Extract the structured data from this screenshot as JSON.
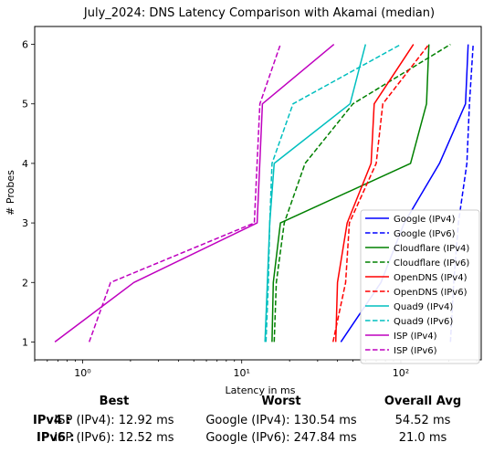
{
  "chart_data": {
    "type": "line",
    "title": "July_2024: DNS Latency Comparison with Akamai (median)",
    "xlabel": "Latency in ms",
    "ylabel": "# Probes",
    "xscale": "log",
    "xlim": [
      0.5,
      320
    ],
    "ylim": [
      0.7,
      6.3
    ],
    "xticks": [
      1,
      10,
      100
    ],
    "xtick_labels": [
      "10⁰",
      "10¹",
      "10²"
    ],
    "yticks": [
      1,
      2,
      3,
      4,
      5,
      6
    ],
    "grid": false,
    "legend_position": "lower-right",
    "series": [
      {
        "name": "Google (IPv4)",
        "color": "#0000ff",
        "dash": "solid",
        "points": [
          [
            42,
            1
          ],
          [
            75,
            2
          ],
          [
            105,
            3
          ],
          [
            175,
            4
          ],
          [
            255,
            5
          ],
          [
            265,
            6
          ]
        ]
      },
      {
        "name": "Google (IPv6)",
        "color": "#0000ff",
        "dash": "dashed",
        "points": [
          [
            205,
            1
          ],
          [
            215,
            2
          ],
          [
            230,
            3
          ],
          [
            260,
            4
          ],
          [
            270,
            5
          ],
          [
            285,
            6
          ]
        ]
      },
      {
        "name": "Cloudflare (IPv4)",
        "color": "#008000",
        "dash": "solid",
        "points": [
          [
            15.5,
            1
          ],
          [
            15.8,
            2
          ],
          [
            17.5,
            3
          ],
          [
            115,
            4
          ],
          [
            145,
            5
          ],
          [
            150,
            6
          ]
        ]
      },
      {
        "name": "Cloudflare (IPv6)",
        "color": "#008000",
        "dash": "dashed",
        "points": [
          [
            16,
            1
          ],
          [
            16.5,
            2
          ],
          [
            18.5,
            3
          ],
          [
            25,
            4
          ],
          [
            50,
            5
          ],
          [
            205,
            6
          ]
        ]
      },
      {
        "name": "OpenDNS (IPv4)",
        "color": "#ff0000",
        "dash": "solid",
        "points": [
          [
            39,
            1
          ],
          [
            40,
            2
          ],
          [
            46,
            3
          ],
          [
            65,
            4
          ],
          [
            68,
            5
          ],
          [
            120,
            6
          ]
        ]
      },
      {
        "name": "OpenDNS (IPv6)",
        "color": "#ff0000",
        "dash": "dashed",
        "points": [
          [
            37.5,
            1
          ],
          [
            45,
            2
          ],
          [
            47.5,
            3
          ],
          [
            70,
            4
          ],
          [
            77,
            5
          ],
          [
            150,
            6
          ]
        ]
      },
      {
        "name": "Quad9 (IPv4)",
        "color": "#00bfbf",
        "dash": "solid",
        "points": [
          [
            14,
            1
          ],
          [
            14.5,
            2
          ],
          [
            15,
            3
          ],
          [
            16,
            4
          ],
          [
            48,
            5
          ],
          [
            60,
            6
          ]
        ]
      },
      {
        "name": "Quad9 (IPv6)",
        "color": "#00bfbf",
        "dash": "dashed",
        "points": [
          [
            14.2,
            1
          ],
          [
            14.7,
            2
          ],
          [
            15,
            3
          ],
          [
            15.5,
            4
          ],
          [
            21,
            5
          ],
          [
            100,
            6
          ]
        ]
      },
      {
        "name": "ISP (IPv4)",
        "color": "#bf00bf",
        "dash": "solid",
        "points": [
          [
            0.67,
            1
          ],
          [
            2.1,
            2
          ],
          [
            12.5,
            3
          ],
          [
            13.5,
            5
          ],
          [
            38,
            6
          ]
        ]
      },
      {
        "name": "ISP (IPv6)",
        "color": "#bf00bf",
        "dash": "dashed",
        "points": [
          [
            1.1,
            1
          ],
          [
            1.5,
            2
          ],
          [
            12,
            3
          ],
          [
            13,
            5
          ],
          [
            17.5,
            6
          ]
        ]
      }
    ]
  },
  "summary": {
    "headers": {
      "best": "Best",
      "worst": "Worst",
      "overall": "Overall Avg"
    },
    "rows": [
      {
        "label": "IPv4 :",
        "best": "ISP (IPv4): 12.92 ms",
        "worst": "Google (IPv4): 130.54 ms",
        "overall": "54.52 ms"
      },
      {
        "label": "IPv6 :",
        "best": "ISP (IPv6): 12.52 ms",
        "worst": "Google (IPv6): 247.84 ms",
        "overall": "21.0 ms"
      }
    ]
  }
}
